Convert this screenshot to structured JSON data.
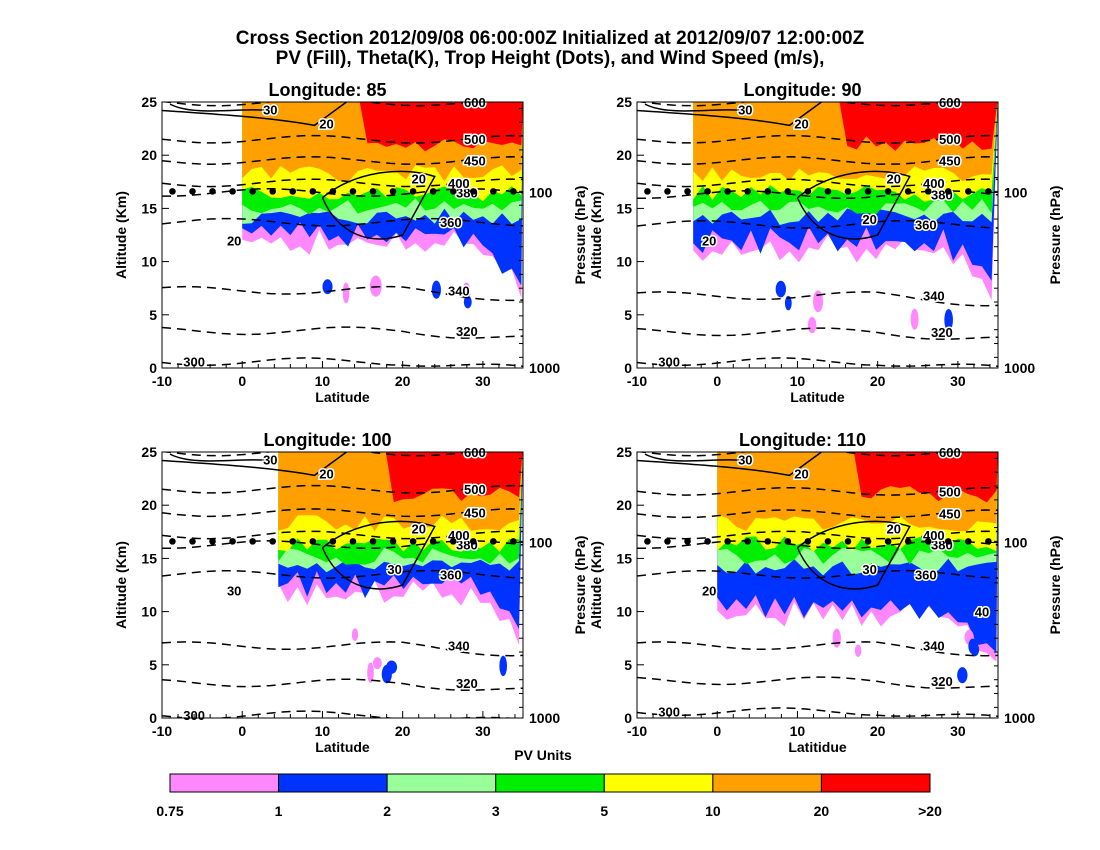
{
  "chart_data": {
    "type": "heatmap",
    "title": "Cross Section 2012/09/08 06:00:00Z Initialized at 2012/09/07 12:00:00Z",
    "subtitle": "PV (Fill), Theta(K), Trop Height (Dots), and Wind Speed (m/s),",
    "colorbar": {
      "label": "PV Units",
      "bins": [
        {
          "label": "0.75",
          "color": "#ff88ff"
        },
        {
          "label": "1",
          "color": "#0033ff"
        },
        {
          "label": "2",
          "color": "#99ff99"
        },
        {
          "label": "3",
          "color": "#00ee00"
        },
        {
          "label": "5",
          "color": "#ffff00"
        },
        {
          "label": "10",
          "color": "#ffa000"
        },
        {
          "label": "20",
          "color": "#ff0000"
        }
      ],
      "last_label": ">20"
    },
    "panels": [
      {
        "title": "Longitude:   85",
        "xlabel": "Latitude",
        "ylabel": "Altitude (Km)",
        "y2label": "Pressure (hPa)",
        "xlim": [
          -10,
          35
        ],
        "ylim": [
          0,
          25
        ],
        "xticks": [
          "-10",
          "0",
          "10",
          "20",
          "30"
        ],
        "yticks": [
          "0",
          "5",
          "10",
          "15",
          "20",
          "25"
        ],
        "y2ticks": [
          {
            "label": "100",
            "alt": 16.5
          },
          {
            "label": "1000",
            "alt": 0
          }
        ],
        "theta_levels": [
          {
            "k": 300,
            "alt": 0.6
          },
          {
            "k": 320,
            "alt": 3.5
          },
          {
            "k": 340,
            "alt": 7.3
          },
          {
            "k": 360,
            "alt": 13.7
          },
          {
            "k": 380,
            "alt": 16.5
          },
          {
            "k": 400,
            "alt": 17.4
          },
          {
            "k": 450,
            "alt": 19.5
          },
          {
            "k": 500,
            "alt": 21.5
          },
          {
            "k": 600,
            "alt": 25
          }
        ],
        "wind_labels": [
          "30",
          "20",
          "20",
          "20"
        ],
        "trop_height_km": 16.6,
        "pv_front_lat": 0,
        "pv_red_lat": 15,
        "base_alt": 13
      },
      {
        "title": "Longitude:   90",
        "xlabel": "Latitude",
        "ylabel": "Altitude (Km)",
        "y2label": "Pressure (hPa)",
        "xlim": [
          -10,
          35
        ],
        "ylim": [
          0,
          25
        ],
        "xticks": [
          "-10",
          "0",
          "10",
          "20",
          "30"
        ],
        "yticks": [
          "0",
          "5",
          "10",
          "15",
          "20",
          "25"
        ],
        "y2ticks": [
          {
            "label": "100",
            "alt": 16.5
          },
          {
            "label": "1000",
            "alt": 0
          }
        ],
        "theta_levels": [
          {
            "k": 300,
            "alt": 0.6
          },
          {
            "k": 320,
            "alt": 3.4
          },
          {
            "k": 340,
            "alt": 6.8
          },
          {
            "k": 360,
            "alt": 13.5
          },
          {
            "k": 380,
            "alt": 16.3
          },
          {
            "k": 400,
            "alt": 17.4
          },
          {
            "k": 450,
            "alt": 19.5
          },
          {
            "k": 500,
            "alt": 21.5
          },
          {
            "k": 600,
            "alt": 25
          }
        ],
        "wind_labels": [
          "30",
          "20",
          "20",
          "20",
          "20"
        ],
        "trop_height_km": 16.6,
        "pv_front_lat": -3,
        "pv_red_lat": 16,
        "base_alt": 12.5
      },
      {
        "title": "Longitude:  100",
        "xlabel": "Latitude",
        "ylabel": "Altitude (Km)",
        "y2label": "Pressure (hPa)",
        "xlim": [
          -10,
          35
        ],
        "ylim": [
          0,
          25
        ],
        "xticks": [
          "-10",
          "0",
          "10",
          "20",
          "30"
        ],
        "yticks": [
          "0",
          "5",
          "10",
          "15",
          "20",
          "25"
        ],
        "y2ticks": [
          {
            "label": "100",
            "alt": 16.5
          },
          {
            "label": "1000",
            "alt": 0
          }
        ],
        "theta_levels": [
          {
            "k": 300,
            "alt": 0.3
          },
          {
            "k": 320,
            "alt": 3.3
          },
          {
            "k": 340,
            "alt": 6.8
          },
          {
            "k": 360,
            "alt": 13.5
          },
          {
            "k": 380,
            "alt": 16.3
          },
          {
            "k": 400,
            "alt": 17.2
          },
          {
            "k": 450,
            "alt": 19.3
          },
          {
            "k": 500,
            "alt": 21.5
          },
          {
            "k": 600,
            "alt": 25
          }
        ],
        "wind_labels": [
          "30",
          "20",
          "20",
          "30",
          "30"
        ],
        "trop_height_km": 16.6,
        "pv_front_lat": 4.5,
        "pv_red_lat": 18,
        "base_alt": 13
      },
      {
        "title": "Longitude:  110",
        "xlabel": "Latitidue",
        "ylabel": "Altitude (Km)",
        "y2label": "Pressure (hPa)",
        "xlim": [
          -10,
          35
        ],
        "ylim": [
          0,
          25
        ],
        "xticks": [
          "-10",
          "0",
          "10",
          "20",
          "30"
        ],
        "yticks": [
          "0",
          "5",
          "10",
          "15",
          "20",
          "25"
        ],
        "y2ticks": [
          {
            "label": "100",
            "alt": 16.5
          },
          {
            "label": "1000",
            "alt": 0
          }
        ],
        "theta_levels": [
          {
            "k": 300,
            "alt": 0.6
          },
          {
            "k": 320,
            "alt": 3.5
          },
          {
            "k": 340,
            "alt": 6.8
          },
          {
            "k": 360,
            "alt": 13.5
          },
          {
            "k": 380,
            "alt": 16.3
          },
          {
            "k": 400,
            "alt": 17.2
          },
          {
            "k": 450,
            "alt": 19.2
          },
          {
            "k": 500,
            "alt": 21.3
          },
          {
            "k": 600,
            "alt": 25
          }
        ],
        "wind_labels": [
          "30",
          "20",
          "20",
          "20",
          "30",
          "40"
        ],
        "trop_height_km": 16.6,
        "pv_front_lat": 0,
        "pv_red_lat": 17,
        "base_alt": 11
      }
    ]
  }
}
